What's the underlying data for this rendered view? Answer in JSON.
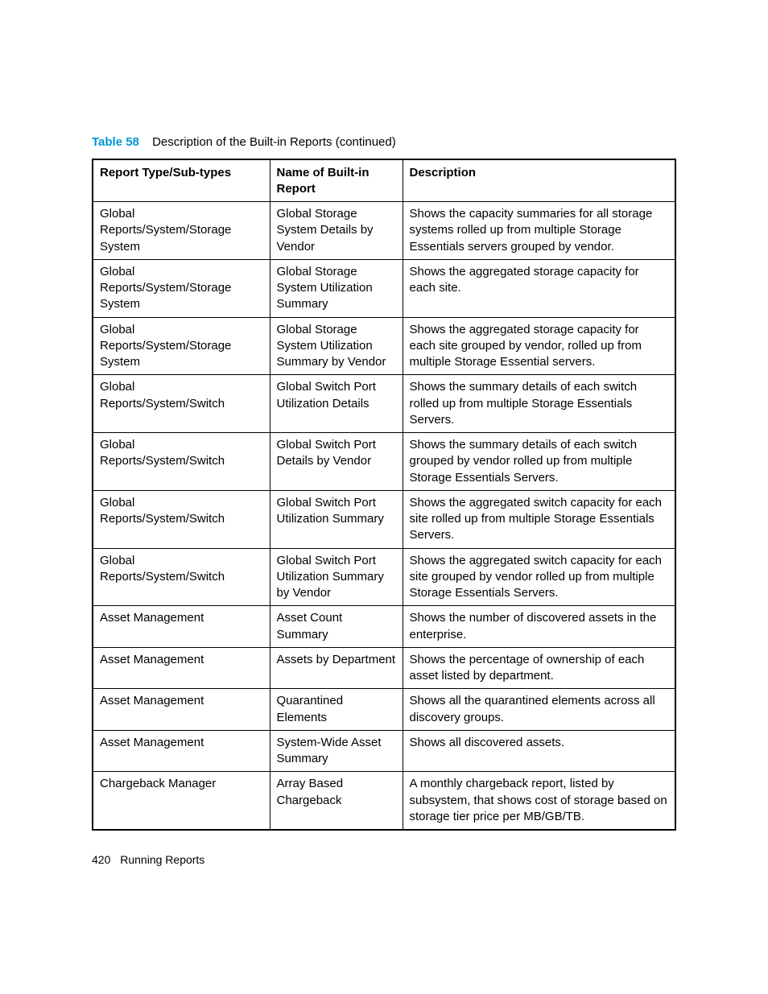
{
  "caption": {
    "label": "Table 58",
    "text": "Description of the Built-in Reports (continued)"
  },
  "table": {
    "columns": [
      "Report Type/Sub-types",
      "Name of Built-in Report",
      "Description"
    ],
    "rows": [
      [
        "Global Reports/System/Storage System",
        "Global Storage System Details by Vendor",
        "Shows the capacity summaries for all storage systems rolled up from multiple Storage Essentials servers grouped by vendor."
      ],
      [
        "Global Reports/System/Storage System",
        "Global Storage System Utilization Summary",
        "Shows the aggregated storage capacity for each site."
      ],
      [
        "Global Reports/System/Storage System",
        "Global Storage System Utilization Summary by Vendor",
        "Shows the aggregated storage capacity for each site grouped by vendor, rolled up from multiple Storage Essential servers."
      ],
      [
        "Global Reports/System/Switch",
        "Global Switch Port Utilization Details",
        "Shows the summary details of each switch rolled up from multiple Storage Essentials Servers."
      ],
      [
        "Global Reports/System/Switch",
        "Global Switch Port Details by Vendor",
        "Shows the summary details of each switch grouped by vendor rolled up from multiple Storage Essentials Servers."
      ],
      [
        "Global Reports/System/Switch",
        "Global Switch Port Utilization Summary",
        "Shows the aggregated switch capacity for each site rolled up from multiple Storage Essentials Servers."
      ],
      [
        "Global Reports/System/Switch",
        "Global Switch Port Utilization Summary by Vendor",
        "Shows the aggregated switch capacity for each site grouped by vendor rolled up from multiple Storage Essentials Servers."
      ],
      [
        "Asset Management",
        "Asset Count Summary",
        "Shows the number of discovered assets in the enterprise."
      ],
      [
        "Asset Management",
        "Assets by Department",
        "Shows the percentage of ownership of each asset listed by department."
      ],
      [
        "Asset Management",
        "Quarantined Elements",
        "Shows all the quarantined elements across all discovery groups."
      ],
      [
        "Asset Management",
        "System-Wide Asset Summary",
        "Shows all discovered assets."
      ],
      [
        "Chargeback Manager",
        "Array Based Chargeback",
        "A monthly chargeback report, listed by subsystem, that shows cost of storage based on storage tier price per MB/GB/TB."
      ]
    ]
  },
  "footer": {
    "page": "420",
    "title": "Running Reports"
  }
}
